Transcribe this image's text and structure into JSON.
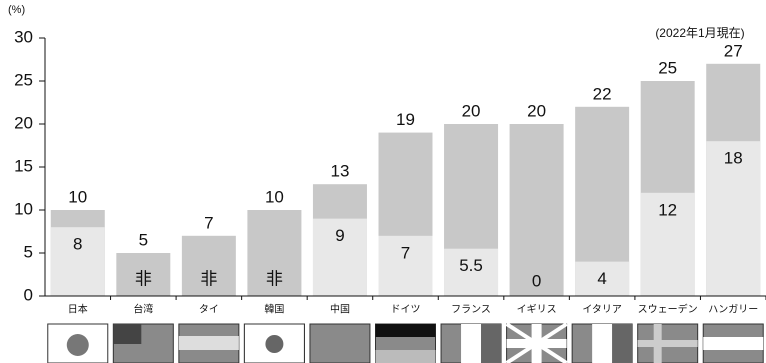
{
  "chart_data": {
    "type": "bar",
    "unit_label": "(%)",
    "annotation": "(2022年1月現在)",
    "categories": [
      "日本",
      "台湾",
      "タイ",
      "韓国",
      "中国",
      "ドイツ",
      "フランス",
      "イギリス",
      "イタリア",
      "スウェーデン",
      "ハンガリー"
    ],
    "series": [
      {
        "color": "#c8c8c8",
        "values": [
          10,
          5,
          7,
          10,
          13,
          19,
          20,
          20,
          22,
          25,
          27
        ]
      },
      {
        "color": "#e8e8e8",
        "values": [
          8,
          null,
          null,
          null,
          9,
          7,
          5.5,
          0,
          4,
          12,
          18
        ],
        "value_labels": [
          "8",
          "非",
          "非",
          "非",
          "9",
          "7",
          "5.5",
          "0",
          "4",
          "12",
          "18"
        ]
      }
    ],
    "ylim": [
      0,
      30
    ],
    "yticks": [
      0,
      5,
      10,
      15,
      20,
      25,
      30
    ],
    "grid": false
  }
}
